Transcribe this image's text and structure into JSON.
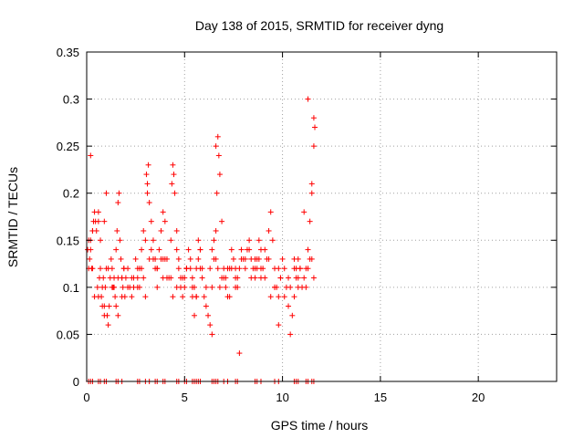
{
  "chart_data": {
    "type": "scatter",
    "title": "Day 138 of 2015, SRMTID for receiver dyng",
    "xlabel": "GPS time / hours",
    "ylabel": "SRMTID / TECUs",
    "xlim": [
      0,
      24
    ],
    "ylim": [
      0,
      0.35
    ],
    "xticks": [
      0,
      5,
      10,
      15,
      20
    ],
    "yticks": [
      0,
      0.05,
      0.1,
      0.15,
      0.2,
      0.25,
      0.3,
      0.35
    ],
    "xtick_labels": [
      "0",
      "5",
      "10",
      "15",
      "20"
    ],
    "ytick_labels": [
      "0",
      "0.05",
      "0.1",
      "0.15",
      "0.2",
      "0.25",
      "0.3",
      "0.35"
    ],
    "grid": true,
    "marker": "+",
    "color": "#ff0000",
    "series": [
      {
        "name": "SRMTID",
        "x": [
          0.05,
          0.1,
          0.15,
          0.2,
          0.25,
          0.3,
          0.35,
          0.4,
          0.45,
          0.5,
          0.55,
          0.6,
          0.65,
          0.7,
          0.75,
          0.8,
          0.85,
          0.9,
          0.95,
          1.0,
          1.05,
          1.1,
          1.15,
          1.2,
          1.25,
          1.3,
          1.35,
          1.4,
          1.45,
          1.5,
          1.55,
          1.6,
          1.65,
          1.7,
          1.75,
          1.8,
          1.85,
          1.9,
          1.95,
          2.0,
          2.1,
          2.2,
          2.3,
          2.4,
          2.5,
          2.6,
          2.7,
          2.8,
          2.9,
          3.0,
          3.05,
          3.1,
          3.15,
          3.2,
          3.3,
          3.4,
          3.5,
          3.6,
          3.7,
          3.8,
          3.9,
          4.0,
          4.1,
          4.2,
          4.3,
          4.35,
          4.4,
          4.45,
          4.5,
          4.6,
          4.7,
          4.8,
          4.9,
          5.0,
          5.1,
          5.2,
          5.3,
          5.4,
          5.5,
          5.6,
          5.7,
          5.8,
          5.9,
          6.0,
          6.1,
          6.2,
          6.3,
          6.4,
          6.5,
          6.6,
          6.65,
          6.7,
          6.75,
          6.8,
          6.9,
          7.0,
          7.1,
          7.2,
          7.3,
          7.4,
          7.5,
          7.6,
          7.7,
          7.8,
          7.9,
          8.0,
          8.1,
          8.2,
          8.3,
          8.4,
          8.5,
          8.6,
          8.7,
          8.8,
          8.9,
          9.0,
          9.1,
          9.2,
          9.3,
          9.4,
          9.5,
          9.6,
          9.7,
          9.8,
          9.9,
          10.0,
          10.1,
          10.2,
          10.3,
          10.4,
          10.5,
          10.6,
          10.7,
          10.8,
          10.9,
          11.0,
          11.1,
          11.2,
          11.3,
          11.4,
          11.5,
          11.6,
          11.65,
          0.2,
          0.6,
          1.1,
          1.6,
          2.1,
          2.6,
          3.1,
          3.6,
          4.1,
          4.6,
          5.1,
          5.6,
          6.1,
          6.6,
          7.1,
          7.6,
          8.1,
          8.6,
          9.1,
          9.6,
          10.1,
          10.6,
          11.1,
          11.5,
          0.4,
          0.9,
          1.4,
          1.9,
          2.4,
          2.9,
          3.4,
          3.9,
          4.4,
          4.9,
          5.4,
          5.9,
          6.4,
          6.9,
          7.4,
          7.9,
          8.4,
          8.9,
          9.4,
          9.9,
          10.4,
          10.9,
          11.4,
          0.3,
          0.8,
          1.3,
          1.8,
          2.3,
          2.8,
          3.3,
          3.8,
          4.3,
          4.8,
          5.3,
          5.8,
          6.3,
          6.8,
          7.3,
          7.8,
          8.3,
          8.8,
          9.3,
          9.8,
          10.3,
          10.8,
          11.3,
          11.6,
          0.1,
          0.2,
          0.3,
          0.6,
          0.7,
          0.9,
          1.0,
          1.5,
          1.6,
          1.8,
          2.6,
          2.7,
          3.0,
          3.2,
          3.5,
          3.6,
          3.9,
          4.0,
          4.6,
          4.7,
          5.0,
          5.1,
          5.4,
          5.5,
          5.6,
          5.7,
          5.8,
          6.4,
          6.5,
          6.6,
          6.7,
          7.0,
          7.2,
          7.6,
          7.7,
          8.6,
          8.7,
          8.9,
          9.6,
          9.8,
          10.6,
          10.7,
          10.8,
          11.2,
          11.3,
          11.5,
          11.6
        ],
        "y": [
          0.14,
          0.15,
          0.13,
          0.15,
          0.12,
          0.16,
          0.17,
          0.18,
          0.17,
          0.16,
          0.1,
          0.09,
          0.11,
          0.12,
          0.09,
          0.1,
          0.11,
          0.08,
          0.1,
          0.12,
          0.07,
          0.06,
          0.08,
          0.11,
          0.13,
          0.12,
          0.1,
          0.11,
          0.09,
          0.14,
          0.16,
          0.19,
          0.2,
          0.15,
          0.13,
          0.11,
          0.1,
          0.12,
          0.09,
          0.11,
          0.12,
          0.1,
          0.09,
          0.11,
          0.13,
          0.12,
          0.1,
          0.14,
          0.16,
          0.15,
          0.22,
          0.21,
          0.23,
          0.19,
          0.17,
          0.15,
          0.13,
          0.12,
          0.14,
          0.16,
          0.18,
          0.17,
          0.13,
          0.11,
          0.15,
          0.21,
          0.23,
          0.22,
          0.2,
          0.16,
          0.13,
          0.11,
          0.09,
          0.1,
          0.12,
          0.14,
          0.13,
          0.11,
          0.1,
          0.12,
          0.15,
          0.14,
          0.11,
          0.09,
          0.08,
          0.07,
          0.06,
          0.1,
          0.13,
          0.16,
          0.2,
          0.26,
          0.24,
          0.22,
          0.17,
          0.12,
          0.1,
          0.09,
          0.12,
          0.14,
          0.13,
          0.11,
          0.1,
          0.12,
          0.14,
          0.13,
          0.12,
          0.14,
          0.15,
          0.13,
          0.12,
          0.11,
          0.13,
          0.15,
          0.14,
          0.12,
          0.11,
          0.13,
          0.16,
          0.18,
          0.15,
          0.12,
          0.1,
          0.09,
          0.11,
          0.13,
          0.12,
          0.1,
          0.08,
          0.05,
          0.07,
          0.09,
          0.11,
          0.13,
          0.12,
          0.1,
          0.11,
          0.12,
          0.14,
          0.17,
          0.21,
          0.25,
          0.27,
          0.14,
          0.17,
          0.12,
          0.11,
          0.1,
          0.11,
          0.2,
          0.12,
          0.11,
          0.1,
          0.12,
          0.09,
          0.1,
          0.25,
          0.11,
          0.12,
          0.13,
          0.12,
          0.14,
          0.1,
          0.09,
          0.12,
          0.18,
          0.2,
          0.09,
          0.07,
          0.1,
          0.12,
          0.1,
          0.11,
          0.13,
          0.13,
          0.09,
          0.11,
          0.09,
          0.12,
          0.05,
          0.11,
          0.12,
          0.13,
          0.11,
          0.12,
          0.09,
          0.11,
          0.1,
          0.12,
          0.13,
          0.12,
          0.08,
          0.1,
          0.09,
          0.11,
          0.12,
          0.14,
          0.13,
          0.11,
          0.1,
          0.12,
          0.14,
          0.12,
          0.1,
          0.09,
          0.03,
          0.14,
          0.13,
          0.13,
          0.12,
          0.11,
          0.1,
          0.3,
          0.11,
          0.12,
          0.24,
          0.16,
          0.18,
          0.15,
          0.17,
          0.2,
          0.08,
          0.07,
          0.11,
          0.1,
          0.12,
          0.09,
          0.13,
          0.12,
          0.1,
          0.11,
          0.13,
          0.14,
          0.12,
          0.11,
          0.12,
          0.1,
          0.07,
          0.09,
          0.13,
          0.12,
          0.14,
          0.15,
          0.13,
          0.12,
          0.11,
          0.12,
          0.1,
          0.11,
          0.13,
          0.12,
          0.11,
          0.1,
          0.06,
          0.13,
          0.12,
          0.11,
          0.1,
          0.12,
          0.13,
          0.28
        ],
        "zero_x": [
          0.1,
          0.2,
          0.3,
          0.6,
          0.7,
          0.9,
          1.0,
          1.5,
          1.6,
          1.8,
          2.6,
          2.7,
          3.0,
          3.2,
          3.5,
          3.6,
          3.9,
          4.0,
          4.6,
          4.7,
          5.0,
          5.1,
          5.4,
          5.5,
          5.6,
          5.7,
          5.8,
          6.4,
          6.5,
          6.6,
          6.7,
          7.0,
          7.2,
          7.6,
          7.7,
          8.6,
          8.7,
          8.9,
          9.6,
          9.8,
          10.6,
          10.7,
          10.8,
          11.2,
          11.3,
          11.5,
          11.6
        ]
      }
    ]
  }
}
